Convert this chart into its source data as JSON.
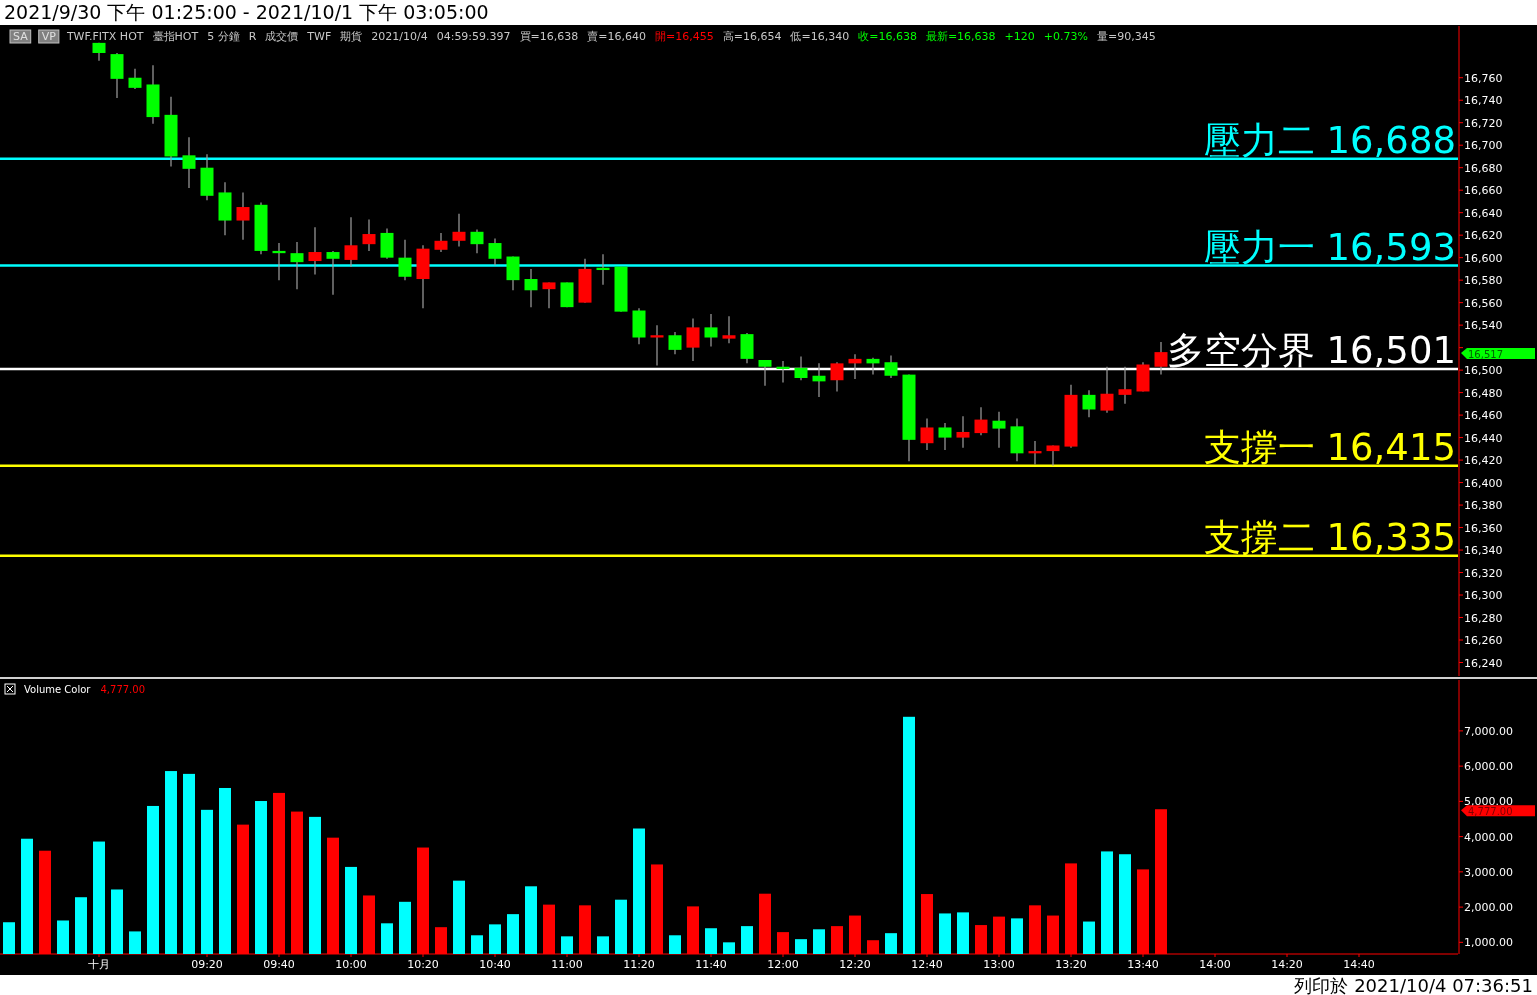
{
  "chart_data": [
    {
      "type": "candlestick",
      "title": "2021/9/30 下午 01:25:00 - 2021/10/1 下午 03:05:00",
      "categories": [
        null,
        null,
        null,
        null,
        null,
        null,
        null,
        null,
        null,
        null,
        null,
        null,
        null,
        null,
        null,
        null,
        null,
        null,
        null,
        null,
        null,
        null,
        null,
        null,
        null,
        null,
        null,
        null,
        null,
        null,
        null,
        null,
        null,
        null,
        null,
        null,
        null,
        null,
        null,
        null,
        null,
        null,
        null,
        null,
        null,
        null,
        null,
        null,
        null,
        null,
        null,
        null,
        null,
        null,
        null,
        null,
        null,
        null,
        null,
        null,
        null,
        null,
        null,
        null,
        null,
        null,
        null,
        null,
        null,
        null,
        null,
        null,
        null,
        null,
        null,
        null,
        null,
        null,
        null,
        null,
        null
      ],
      "ohlc": [
        null,
        null,
        null,
        null,
        null,
        [
          16791,
          16791,
          16775,
          16782
        ],
        [
          16781,
          16782,
          16742,
          16759
        ],
        [
          16760,
          16768,
          16750,
          16751
        ],
        [
          16754,
          16771,
          16719,
          16725
        ],
        [
          16727,
          16743,
          16681,
          16690
        ],
        [
          16691,
          16707,
          16662,
          16679
        ],
        [
          16680,
          16692,
          16651,
          16655
        ],
        [
          16658,
          16667,
          16620,
          16633
        ],
        [
          16633,
          16658,
          16616,
          16645
        ],
        [
          16647,
          16649,
          16603,
          16606
        ],
        [
          16606,
          16613,
          16580,
          16604
        ],
        [
          16604,
          16614,
          16572,
          16596
        ],
        [
          16597,
          16627,
          16585,
          16605
        ],
        [
          16605,
          16606,
          16567,
          16599
        ],
        [
          16598,
          16636,
          16592,
          16611
        ],
        [
          16612,
          16634,
          16606,
          16621
        ],
        [
          16622,
          16626,
          16599,
          16600
        ],
        [
          16600,
          16616,
          16580,
          16583
        ],
        [
          16581,
          16611,
          16555,
          16608
        ],
        [
          16607,
          16622,
          16605,
          16615
        ],
        [
          16615,
          16639,
          16610,
          16623
        ],
        [
          16623,
          16625,
          16604,
          16612
        ],
        [
          16613,
          16617,
          16593,
          16599
        ],
        [
          16601,
          16601,
          16571,
          16580
        ],
        [
          16581,
          16590,
          16556,
          16571
        ],
        [
          16572,
          16578,
          16555,
          16578
        ],
        [
          16578,
          16578,
          16556,
          16556
        ],
        [
          16560,
          16599,
          16560,
          16590
        ],
        [
          16591,
          16603,
          16576,
          16589
        ],
        [
          16592,
          16592,
          16552,
          16552
        ],
        [
          16553,
          16555,
          16523,
          16529
        ],
        [
          16529,
          16540,
          16504,
          16531
        ],
        [
          16531,
          16534,
          16514,
          16518
        ],
        [
          16520,
          16546,
          16508,
          16538
        ],
        [
          16538,
          16550,
          16521,
          16529
        ],
        [
          16528,
          16548,
          16524,
          16531
        ],
        [
          16532,
          16533,
          16506,
          16510
        ],
        [
          16509,
          16509,
          16486,
          16503
        ],
        [
          16503,
          16508,
          16489,
          16501
        ],
        [
          16502,
          16512,
          16491,
          16493
        ],
        [
          16495,
          16506,
          16476,
          16490
        ],
        [
          16491,
          16507,
          16481,
          16506
        ],
        [
          16506,
          16514,
          16492,
          16510
        ],
        [
          16510,
          16511,
          16496,
          16506
        ],
        [
          16507,
          16513,
          16493,
          16495
        ],
        [
          16496,
          16496,
          16419,
          16438
        ],
        [
          16435,
          16457,
          16429,
          16449
        ],
        [
          16449,
          16453,
          16429,
          16440
        ],
        [
          16440,
          16459,
          16431,
          16445
        ],
        [
          16444,
          16467,
          16442,
          16456
        ],
        [
          16455,
          16463,
          16431,
          16448
        ],
        [
          16450,
          16457,
          16419,
          16426
        ],
        [
          16426,
          16437,
          16416,
          16428
        ],
        [
          16428,
          16433,
          16415,
          16433
        ],
        [
          16432,
          16487,
          16431,
          16478
        ],
        [
          16478,
          16482,
          16458,
          16465
        ],
        [
          16464,
          16503,
          16462,
          16479
        ],
        [
          16478,
          16503,
          16470,
          16483
        ],
        [
          16481,
          16507,
          16481,
          16505
        ],
        [
          16503,
          16525,
          16496,
          16516
        ],
        null,
        null,
        null,
        null,
        null,
        null,
        null,
        null,
        null,
        null,
        null,
        null,
        null,
        null,
        null,
        null
      ],
      "colors": [
        null,
        null,
        null,
        null,
        null,
        "#00ff00",
        "#00ff00",
        "#00ff00",
        "#00ff00",
        "#00ff00",
        "#00ff00",
        "#00ff00",
        "#00ff00",
        "#ff0000",
        "#00ff00",
        "#00ff00",
        "#00ff00",
        "#ff0000",
        "#00ff00",
        "#ff0000",
        "#ff0000",
        "#00ff00",
        "#00ff00",
        "#ff0000",
        "#ff0000",
        "#ff0000",
        "#00ff00",
        "#00ff00",
        "#00ff00",
        "#00ff00",
        "#ff0000",
        "#00ff00",
        "#ff0000",
        "#00ff00",
        "#00ff00",
        "#00ff00",
        "#ff0000",
        "#00ff00",
        "#ff0000",
        "#00ff00",
        "#ff0000",
        "#00ff00",
        "#00ff00",
        "#00ff00",
        "#00ff00",
        "#00ff00",
        "#ff0000",
        "#ff0000",
        "#00ff00",
        "#00ff00",
        "#00ff00",
        "#ff0000",
        "#00ff00",
        "#ff0000",
        "#ff0000",
        "#00ff00",
        "#00ff00",
        "#ff0000",
        "#ff0000",
        "#ff0000",
        "#00ff00",
        "#ff0000",
        "#ff0000",
        "#ff0000",
        "#ff0000",
        null,
        null,
        null,
        null,
        null,
        null,
        null,
        null,
        null,
        null,
        null,
        null,
        null,
        null,
        null,
        null
      ],
      "ylim": [
        16228,
        16806
      ],
      "yticks": [
        {
          "value": 16240,
          "label": "16,240"
        },
        {
          "value": 16260,
          "label": "16,260"
        },
        {
          "value": 16280,
          "label": "16,280"
        },
        {
          "value": 16300,
          "label": "16,300"
        },
        {
          "value": 16320,
          "label": "16,320"
        },
        {
          "value": 16340,
          "label": "16,340"
        },
        {
          "value": 16360,
          "label": "16,360"
        },
        {
          "value": 16380,
          "label": "16,380"
        },
        {
          "value": 16400,
          "label": "16,400"
        },
        {
          "value": 16420,
          "label": "16,420"
        },
        {
          "value": 16440,
          "label": "16,440"
        },
        {
          "value": 16460,
          "label": "16,460"
        },
        {
          "value": 16480,
          "label": "16,480"
        },
        {
          "value": 16500,
          "label": "16,500"
        },
        {
          "value": 16520,
          "label": null
        },
        {
          "value": 16540,
          "label": "16,540"
        },
        {
          "value": 16560,
          "label": "16,560"
        },
        {
          "value": 16580,
          "label": "16,580"
        },
        {
          "value": 16600,
          "label": "16,600"
        },
        {
          "value": 16620,
          "label": "16,620"
        },
        {
          "value": 16640,
          "label": "16,640"
        },
        {
          "value": 16660,
          "label": "16,660"
        },
        {
          "value": 16680,
          "label": "16,680"
        },
        {
          "value": 16700,
          "label": "16,700"
        },
        {
          "value": 16720,
          "label": "16,720"
        },
        {
          "value": 16740,
          "label": "16,740"
        },
        {
          "value": 16760,
          "label": "16,760"
        }
      ],
      "tick_labels": "y",
      "ref_lines": [
        {
          "axis": "y",
          "value": 16688,
          "label": "壓力二 16,688",
          "color": "#00ffff"
        },
        {
          "axis": "y",
          "value": 16593,
          "label": "壓力一 16,593",
          "color": "#00ffff"
        },
        {
          "axis": "y",
          "value": 16501,
          "label": "多空分界 16,501",
          "color": "#ffffff"
        },
        {
          "axis": "y",
          "value": 16415,
          "label": "支撐一 16,415",
          "color": "#ffff00"
        },
        {
          "axis": "y",
          "value": 16335,
          "label": "支撐二 16,335",
          "color": "#ffff00"
        }
      ],
      "annotations": [
        "SA",
        "VP",
        "TWF.FITX HOT",
        "臺指HOT",
        "5 分鐘",
        "R",
        "成交價",
        "TWF",
        "期貨",
        "2021/10/4",
        "04:59:59.397",
        "買=16,638",
        "賣=16,640",
        "開=16,455",
        "高=16,654",
        "低=16,340",
        "收=16,638",
        "最新=16,638",
        "+120",
        "+0.73%",
        "量=90,345",
        "16,517"
      ]
    },
    {
      "type": "bar",
      "categories": [
        null,
        null,
        null,
        null,
        null,
        "十月",
        null,
        null,
        null,
        null,
        null,
        "09:20",
        null,
        null,
        null,
        "09:40",
        null,
        null,
        null,
        "10:00",
        null,
        null,
        null,
        "10:20",
        null,
        null,
        null,
        "10:40",
        null,
        null,
        null,
        "11:00",
        null,
        null,
        null,
        "11:20",
        null,
        null,
        null,
        "11:40",
        null,
        null,
        null,
        "12:00",
        null,
        null,
        null,
        "12:20",
        null,
        null,
        null,
        "12:40",
        null,
        null,
        null,
        "13:00",
        null,
        null,
        null,
        "13:20",
        null,
        null,
        null,
        "13:40",
        null,
        null,
        null,
        "14:00",
        null,
        null,
        null,
        "14:20",
        null,
        null,
        null,
        "14:40",
        null,
        null,
        null,
        null,
        null
      ],
      "values": [
        1570,
        3940,
        3600,
        1620,
        2280,
        3860,
        2500,
        1310,
        4870,
        5860,
        5780,
        4760,
        5380,
        4340,
        5010,
        5240,
        4710,
        4560,
        3970,
        3140,
        2330,
        1540,
        2150,
        3690,
        1430,
        2750,
        1200,
        1510,
        1800,
        2590,
        2070,
        1170,
        2050,
        1170,
        2210,
        4230,
        3210,
        1200,
        2020,
        1400,
        1000,
        1460,
        2380,
        1290,
        1090,
        1370,
        1460,
        1760,
        1060,
        1260,
        7400,
        2370,
        1820,
        1850,
        1490,
        1730,
        1680,
        2050,
        1760,
        3240,
        1590,
        3580,
        3500,
        3070,
        4777,
        null,
        null,
        null,
        null,
        null,
        null,
        null,
        null,
        null,
        null,
        null,
        null,
        null,
        null,
        null,
        null
      ],
      "colors": [
        "#00ffff",
        "#00ffff",
        "#ff0000",
        "#00ffff",
        "#00ffff",
        "#00ffff",
        "#00ffff",
        "#00ffff",
        "#00ffff",
        "#00ffff",
        "#00ffff",
        "#00ffff",
        "#00ffff",
        "#ff0000",
        "#00ffff",
        "#ff0000",
        "#ff0000",
        "#00ffff",
        "#ff0000",
        "#00ffff",
        "#ff0000",
        "#00ffff",
        "#00ffff",
        "#ff0000",
        "#ff0000",
        "#00ffff",
        "#00ffff",
        "#00ffff",
        "#00ffff",
        "#00ffff",
        "#ff0000",
        "#00ffff",
        "#ff0000",
        "#00ffff",
        "#00ffff",
        "#00ffff",
        "#ff0000",
        "#00ffff",
        "#ff0000",
        "#00ffff",
        "#00ffff",
        "#00ffff",
        "#ff0000",
        "#ff0000",
        "#00ffff",
        "#00ffff",
        "#ff0000",
        "#ff0000",
        "#ff0000",
        "#00ffff",
        "#00ffff",
        "#ff0000",
        "#00ffff",
        "#00ffff",
        "#ff0000",
        "#ff0000",
        "#00ffff",
        "#ff0000",
        "#ff0000",
        "#ff0000",
        "#00ffff",
        "#00ffff",
        "#00ffff",
        "#ff0000",
        "#ff0000",
        null,
        null,
        null,
        null,
        null,
        null,
        null,
        null,
        null,
        null,
        null,
        null,
        null,
        null,
        null,
        null
      ],
      "ylim": [
        669,
        8444
      ],
      "yticks": [
        {
          "value": 1000,
          "label": "1,000.00"
        },
        {
          "value": 2000,
          "label": "2,000.00"
        },
        {
          "value": 3000,
          "label": "3,000.00"
        },
        {
          "value": 4000,
          "label": "4,000.00"
        },
        {
          "value": 5000,
          "label": "5,000.00"
        },
        {
          "value": 6000,
          "label": "6,000.00"
        },
        {
          "value": 7000,
          "label": "7,000.00"
        }
      ],
      "annotations": [
        "Volume Color",
        "4,777.00",
        "4,777.00",
        "列印於 2021/10/4 07:36:51"
      ]
    }
  ]
}
